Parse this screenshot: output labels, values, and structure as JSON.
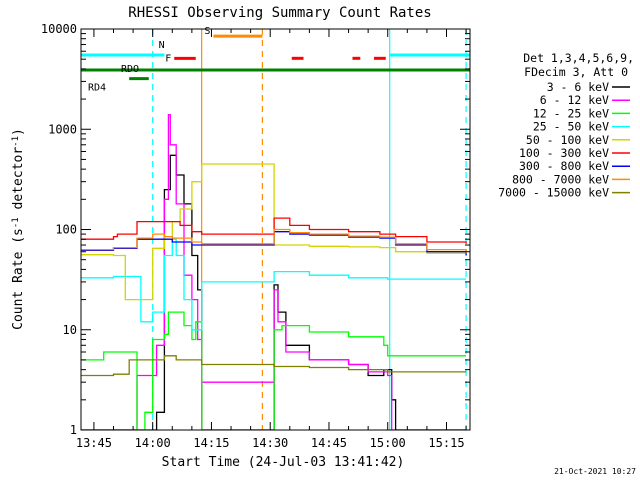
{
  "chart_data": {
    "type": "line",
    "title": "RHESSI Observing Summary Count Rates",
    "xlabel": "Start Time (24-Jul-03 13:41:42)",
    "ylabel": "Count Rate (s⁻¹ detector⁻¹)",
    "ylabel_parts": {
      "a": "Count Rate (s",
      "e1": "-1",
      "b": " detector",
      "e2": "-1",
      "c": ")"
    },
    "yscale": "log",
    "ylim": [
      1,
      10000
    ],
    "xlim": [
      "13:41:42",
      "15:21:00"
    ],
    "x_ticks": [
      "13:45",
      "14:00",
      "14:15",
      "14:30",
      "14:45",
      "15:00",
      "15:15"
    ],
    "y_ticks": [
      "1",
      "10",
      "100",
      "1000",
      "10000"
    ],
    "legend": {
      "placement": "right",
      "header1": "Det 1,3,4,5,6,9,",
      "header2": "FDecim 3, Att 0",
      "entries": [
        {
          "label": "3 - 6 keV",
          "color": "#000000"
        },
        {
          "label": "6 - 12 keV",
          "color": "#ff00ff"
        },
        {
          "label": "12 - 25 keV",
          "color": "#00ff00"
        },
        {
          "label": "25 - 50 keV",
          "color": "#00ffff"
        },
        {
          "label": "50 - 100 keV",
          "color": "#d4d400"
        },
        {
          "label": "100 - 300 keV",
          "color": "#ff0000"
        },
        {
          "label": "300 - 800 keV",
          "color": "#0000ff"
        },
        {
          "label": "800 - 7000 keV",
          "color": "#ff8c00"
        },
        {
          "label": "7000 - 15000 keV",
          "color": "#808000"
        }
      ]
    },
    "flags": [
      {
        "label": "N",
        "color": "#00ffff",
        "level": 5500,
        "segments": [
          [
            "13:41:42",
            "14:03:00"
          ],
          [
            "15:00:30",
            "15:21:00"
          ]
        ]
      },
      {
        "label": "F",
        "color": "#ff0000",
        "level": 5100,
        "segments": [
          [
            "14:05:30",
            "14:11:00"
          ],
          [
            "14:35:30",
            "14:38:30"
          ],
          [
            "14:51:00",
            "14:53:00"
          ],
          [
            "14:56:30",
            "14:59:30"
          ]
        ]
      },
      {
        "label": "S",
        "color": "#ff8c00",
        "level": 8500,
        "segments": [
          [
            "14:15:30",
            "14:28:00"
          ]
        ]
      },
      {
        "label": "RDO",
        "color": "#008000",
        "level": 3900,
        "segments": [
          [
            "13:41:42",
            "15:21:00"
          ]
        ]
      },
      {
        "label": "RD4",
        "color": "#008000",
        "level": 3200,
        "segments": [
          [
            "13:54:00",
            "13:59:00"
          ]
        ]
      }
    ],
    "vertical_lines": [
      {
        "time": "14:00:00",
        "color": "#00ffff",
        "style": "dashed"
      },
      {
        "time": "14:12:30",
        "color": "#ff8c00",
        "style": "solid"
      },
      {
        "time": "14:28:00",
        "color": "#ff8c00",
        "style": "dashed"
      },
      {
        "time": "15:00:30",
        "color": "#00ffff",
        "style": "solid"
      },
      {
        "time": "15:20:00",
        "color": "#00ffff",
        "style": "dashed"
      }
    ],
    "series": [
      {
        "name": "3 - 6 keV",
        "color": "#000000",
        "x": [
          "13:41:42",
          "13:59:00",
          "14:01:00",
          "14:03:00",
          "14:04:30",
          "14:06:00",
          "14:08:00",
          "14:10:00",
          "14:11:30",
          "14:12:30",
          "14:31:00",
          "14:32:00",
          "14:34:00",
          "14:40:00",
          "14:50:00",
          "14:55:00",
          "14:59:00",
          "15:01:00",
          "15:02:00",
          "15:20:00"
        ],
        "y": [
          1,
          1,
          1.5,
          250,
          550,
          350,
          180,
          55,
          25,
          1,
          28,
          15,
          7,
          5,
          4.5,
          3.5,
          4,
          2,
          1,
          1
        ]
      },
      {
        "name": "6 - 12 keV",
        "color": "#ff00ff",
        "x": [
          "13:41:42",
          "13:55:00",
          "13:56:00",
          "13:59:00",
          "14:01:00",
          "14:03:00",
          "14:04:00",
          "14:04:30",
          "14:06:00",
          "14:08:00",
          "14:10:00",
          "14:11:30",
          "14:12:30",
          "14:31:00",
          "14:32:00",
          "14:34:00",
          "14:40:00",
          "14:50:00",
          "14:55:00",
          "15:00:00",
          "15:01:00",
          "15:20:00"
        ],
        "y": [
          1,
          1,
          3.5,
          3.5,
          7,
          200,
          1400,
          700,
          180,
          35,
          20,
          8,
          3,
          25,
          12,
          6,
          5,
          4.5,
          3.8,
          3.5,
          1,
          1
        ]
      },
      {
        "name": "12 - 25 keV",
        "color": "#00ff00",
        "x": [
          "13:41:42",
          "13:47:00",
          "13:47:30",
          "13:55:00",
          "13:56:00",
          "13:58:00",
          "14:00:00",
          "14:03:00",
          "14:04:00",
          "14:08:00",
          "14:10:00",
          "14:11:00",
          "14:12:30",
          "14:31:00",
          "14:33:00",
          "14:40:00",
          "14:50:00",
          "14:59:00",
          "15:00:00",
          "15:20:00"
        ],
        "y": [
          5,
          5,
          6,
          6,
          1,
          1.5,
          8,
          9,
          15,
          11,
          8,
          12,
          1,
          10,
          11,
          9.5,
          8.5,
          7,
          5.5,
          5.5
        ]
      },
      {
        "name": "25 - 50 keV",
        "color": "#00ffff",
        "x": [
          "13:41:42",
          "13:50:00",
          "13:56:00",
          "13:57:00",
          "13:59:00",
          "14:00:00",
          "14:03:00",
          "14:05:00",
          "14:06:00",
          "14:08:00",
          "14:10:00",
          "14:12:30",
          "14:31:00",
          "14:40:00",
          "14:50:00",
          "15:00:00",
          "15:10:00",
          "15:20:00"
        ],
        "y": [
          33,
          34,
          34,
          12,
          12,
          15,
          55,
          80,
          55,
          20,
          10,
          30,
          38,
          35,
          33,
          32,
          32,
          32
        ]
      },
      {
        "name": "50 - 100 keV",
        "color": "#d4d400",
        "x": [
          "13:41:42",
          "13:50:00",
          "13:52:00",
          "13:53:00",
          "13:56:00",
          "14:00:00",
          "14:03:00",
          "14:05:00",
          "14:07:00",
          "14:10:00",
          "14:12:30",
          "14:31:00",
          "14:40:00",
          "14:50:00",
          "14:58:00",
          "15:02:00",
          "15:10:00",
          "15:20:00"
        ],
        "y": [
          56,
          55,
          55,
          20,
          20,
          65,
          85,
          120,
          160,
          300,
          450,
          70,
          68,
          67,
          66,
          60,
          58,
          58
        ]
      },
      {
        "name": "100 - 300 keV",
        "color": "#ff0000",
        "x": [
          "13:41:42",
          "13:50:00",
          "13:51:00",
          "13:55:00",
          "13:56:00",
          "14:03:00",
          "14:05:00",
          "14:07:00",
          "14:10:00",
          "14:12:30",
          "14:31:00",
          "14:35:00",
          "14:40:00",
          "14:50:00",
          "14:58:00",
          "15:02:00",
          "15:10:00",
          "15:20:00"
        ],
        "y": [
          80,
          85,
          90,
          90,
          120,
          120,
          120,
          110,
          95,
          90,
          130,
          110,
          100,
          95,
          90,
          85,
          75,
          72
        ]
      },
      {
        "name": "300 - 800 keV",
        "color": "#0000ff",
        "x": [
          "13:41:42",
          "13:50:00",
          "13:56:00",
          "14:03:00",
          "14:05:00",
          "14:10:00",
          "14:12:30",
          "14:31:00",
          "14:35:00",
          "14:40:00",
          "14:50:00",
          "14:58:00",
          "15:02:00",
          "15:10:00",
          "15:20:00"
        ],
        "y": [
          62,
          65,
          80,
          80,
          75,
          70,
          70,
          95,
          90,
          88,
          84,
          82,
          70,
          60,
          55
        ]
      },
      {
        "name": "800 - 7000 keV",
        "color": "#ff8c00",
        "x": [
          "13:41:42",
          "13:50:00",
          "13:56:00",
          "14:00:00",
          "14:03:00",
          "14:05:00",
          "14:10:00",
          "14:12:30",
          "14:31:00",
          "14:35:00",
          "14:40:00",
          "14:50:00",
          "14:58:00",
          "15:02:00",
          "15:10:00",
          "15:20:00"
        ],
        "y": [
          63,
          66,
          82,
          90,
          85,
          82,
          75,
          72,
          100,
          93,
          90,
          86,
          84,
          72,
          63,
          58
        ]
      },
      {
        "name": "7000 - 15000 keV",
        "color": "#808000",
        "x": [
          "13:41:42",
          "13:50:00",
          "13:54:00",
          "14:03:00",
          "14:06:00",
          "14:12:30",
          "14:31:00",
          "14:40:00",
          "14:50:00",
          "15:00:00",
          "15:10:00",
          "15:20:00"
        ],
        "y": [
          3.5,
          3.6,
          5,
          5.5,
          5,
          4.5,
          4.3,
          4.2,
          4,
          3.8,
          3.8,
          3.8
        ]
      }
    ]
  },
  "footer": {
    "date_stamp": "21-Oct-2021 10:27"
  }
}
